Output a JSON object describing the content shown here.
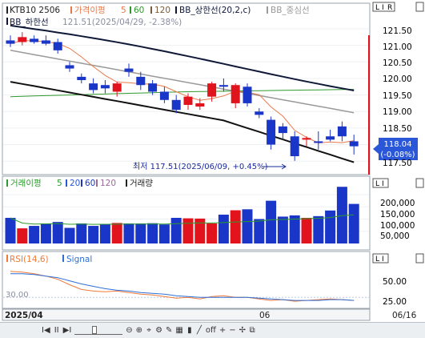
{
  "main_legend": {
    "symbol": "KTB10 2506",
    "ma_label": "가격이평",
    "ma_periods": [
      "5",
      "60",
      "120"
    ],
    "bb_upper": "BB_상한선(20,2,c)",
    "bb_mid": "BB_중심선",
    "bb_lower": "BB_하한선"
  },
  "bb_lower_readout": "121.51(2025/04/29, -2.38%)",
  "price_axis": [
    "121.50",
    "121.00",
    "120.50",
    "120.00",
    "119.50",
    "119.00",
    "118.50",
    "117.50"
  ],
  "current_price": "118.04",
  "current_change": "(-0.08%)",
  "low_annotation": "최저 117.51(2025/06/09, +0.45%)",
  "volume_legend": {
    "ma_label": "거래이평",
    "ma_periods": [
      "5",
      "20",
      "60",
      "120"
    ],
    "series": "거래량"
  },
  "volume_axis": [
    "200,000",
    "150,000",
    "100,000",
    "50,000"
  ],
  "rsi_legend": {
    "label": "RSI(14,6)",
    "signal": "Signal"
  },
  "rsi_axis": [
    "50.00",
    "25.00"
  ],
  "rsi_level": "30.00",
  "date_labels": {
    "start": "2025/04",
    "mid": "06",
    "end": "06/16"
  },
  "panel_buttons": [
    "L",
    "I",
    "R"
  ],
  "toolbar": {
    "items": [
      "I◀",
      "II",
      "▶I",
      "⊖",
      "⊕",
      "off",
      "+",
      "−"
    ],
    "controls": [
      "scroll-left",
      "pause",
      "scroll-right",
      "zoom-out",
      "zoom-in",
      "crosshair-off",
      "plus",
      "minus"
    ]
  },
  "colors": {
    "up": "#e1141e",
    "down": "#1a36c8",
    "ma5": "#e8794a",
    "ma60": "#2d9a2d",
    "bb_upper": "#101838",
    "bb_mid": "#9a9a9a",
    "rsi": "#2d6fd6",
    "signal": "#f07a3a"
  },
  "candles": [
    {
      "o": 121.15,
      "h": 121.3,
      "l": 120.95,
      "c": 121.05
    },
    {
      "o": 121.1,
      "h": 121.4,
      "l": 121.0,
      "c": 121.25
    },
    {
      "o": 121.2,
      "h": 121.3,
      "l": 121.05,
      "c": 121.1
    },
    {
      "o": 121.15,
      "h": 121.3,
      "l": 121.0,
      "c": 121.05
    },
    {
      "o": 121.1,
      "h": 121.2,
      "l": 120.75,
      "c": 120.85
    },
    {
      "o": 120.4,
      "h": 120.5,
      "l": 120.2,
      "c": 120.3
    },
    {
      "o": 120.05,
      "h": 120.15,
      "l": 119.85,
      "c": 119.95
    },
    {
      "o": 119.85,
      "h": 120.0,
      "l": 119.55,
      "c": 119.65
    },
    {
      "o": 119.8,
      "h": 119.95,
      "l": 119.55,
      "c": 119.7
    },
    {
      "o": 119.6,
      "h": 119.9,
      "l": 119.45,
      "c": 119.85
    },
    {
      "o": 120.3,
      "h": 120.45,
      "l": 120.05,
      "c": 120.2
    },
    {
      "o": 120.05,
      "h": 120.2,
      "l": 119.65,
      "c": 119.8
    },
    {
      "o": 119.85,
      "h": 119.95,
      "l": 119.5,
      "c": 119.6
    },
    {
      "o": 119.6,
      "h": 119.75,
      "l": 119.25,
      "c": 119.35
    },
    {
      "o": 119.35,
      "h": 119.5,
      "l": 118.95,
      "c": 119.05
    },
    {
      "o": 119.2,
      "h": 119.55,
      "l": 119.05,
      "c": 119.45
    },
    {
      "o": 119.15,
      "h": 119.4,
      "l": 119.05,
      "c": 119.25
    },
    {
      "o": 119.45,
      "h": 119.9,
      "l": 119.3,
      "c": 119.85
    },
    {
      "o": 119.8,
      "h": 120.0,
      "l": 119.6,
      "c": 119.75
    },
    {
      "o": 119.25,
      "h": 119.85,
      "l": 119.1,
      "c": 119.8
    },
    {
      "o": 119.75,
      "h": 119.85,
      "l": 119.15,
      "c": 119.25
    },
    {
      "o": 119.0,
      "h": 119.1,
      "l": 118.8,
      "c": 118.9
    },
    {
      "o": 118.75,
      "h": 118.85,
      "l": 117.85,
      "c": 118.0
    },
    {
      "o": 118.55,
      "h": 118.65,
      "l": 118.15,
      "c": 118.35
    },
    {
      "o": 118.25,
      "h": 118.4,
      "l": 117.51,
      "c": 117.65
    },
    {
      "o": 118.15,
      "h": 118.25,
      "l": 117.95,
      "c": 118.2
    },
    {
      "o": 118.1,
      "h": 118.4,
      "l": 117.85,
      "c": 118.05
    },
    {
      "o": 118.25,
      "h": 118.45,
      "l": 118.1,
      "c": 118.15
    },
    {
      "o": 118.55,
      "h": 118.7,
      "l": 118.1,
      "c": 118.25
    },
    {
      "o": 118.1,
      "h": 118.3,
      "l": 117.7,
      "c": 117.95
    }
  ],
  "volumes": [
    105000,
    62000,
    72000,
    82000,
    88000,
    64000,
    82000,
    72000,
    80000,
    84000,
    82000,
    82000,
    83000,
    78000,
    105000,
    103000,
    102000,
    82000,
    118000,
    136000,
    140000,
    100000,
    175000,
    110000,
    115000,
    105000,
    112000,
    135000,
    232000,
    162000
  ],
  "rsi_values": [
    63,
    62,
    60,
    57,
    53,
    46,
    40,
    38,
    37,
    38,
    36,
    34,
    33,
    31,
    29,
    30,
    28,
    31,
    32,
    30,
    30,
    28,
    26,
    27,
    25,
    26,
    27,
    28,
    27,
    26
  ],
  "signal_values": [
    60,
    60,
    59,
    57,
    55,
    51,
    47,
    44,
    41,
    39,
    38,
    36,
    35,
    34,
    32,
    31,
    30,
    30,
    30,
    30,
    30,
    29,
    28,
    27,
    26,
    26,
    26,
    27,
    27,
    26
  ]
}
